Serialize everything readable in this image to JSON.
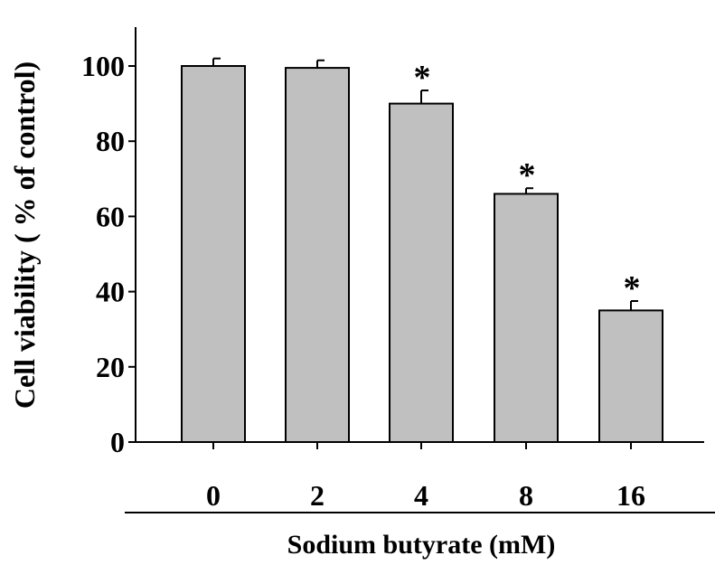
{
  "chart_data": {
    "type": "bar",
    "categories": [
      "0",
      "2",
      "4",
      "8",
      "16"
    ],
    "values": [
      100,
      99.5,
      90,
      66,
      35
    ],
    "errors": [
      2,
      2,
      3.5,
      1.5,
      2.5
    ],
    "significance": [
      "",
      "",
      "*",
      "*",
      "*"
    ],
    "title": "",
    "xlabel": "Sodium butyrate (mM)",
    "ylabel": "Cell viability ( % of control)",
    "ylim": [
      0,
      110
    ],
    "yticks": [
      0,
      20,
      40,
      60,
      80,
      100
    ],
    "grid": false,
    "colors": {
      "bar_fill": "#c0c0c0",
      "bar_stroke": "#000000"
    }
  }
}
